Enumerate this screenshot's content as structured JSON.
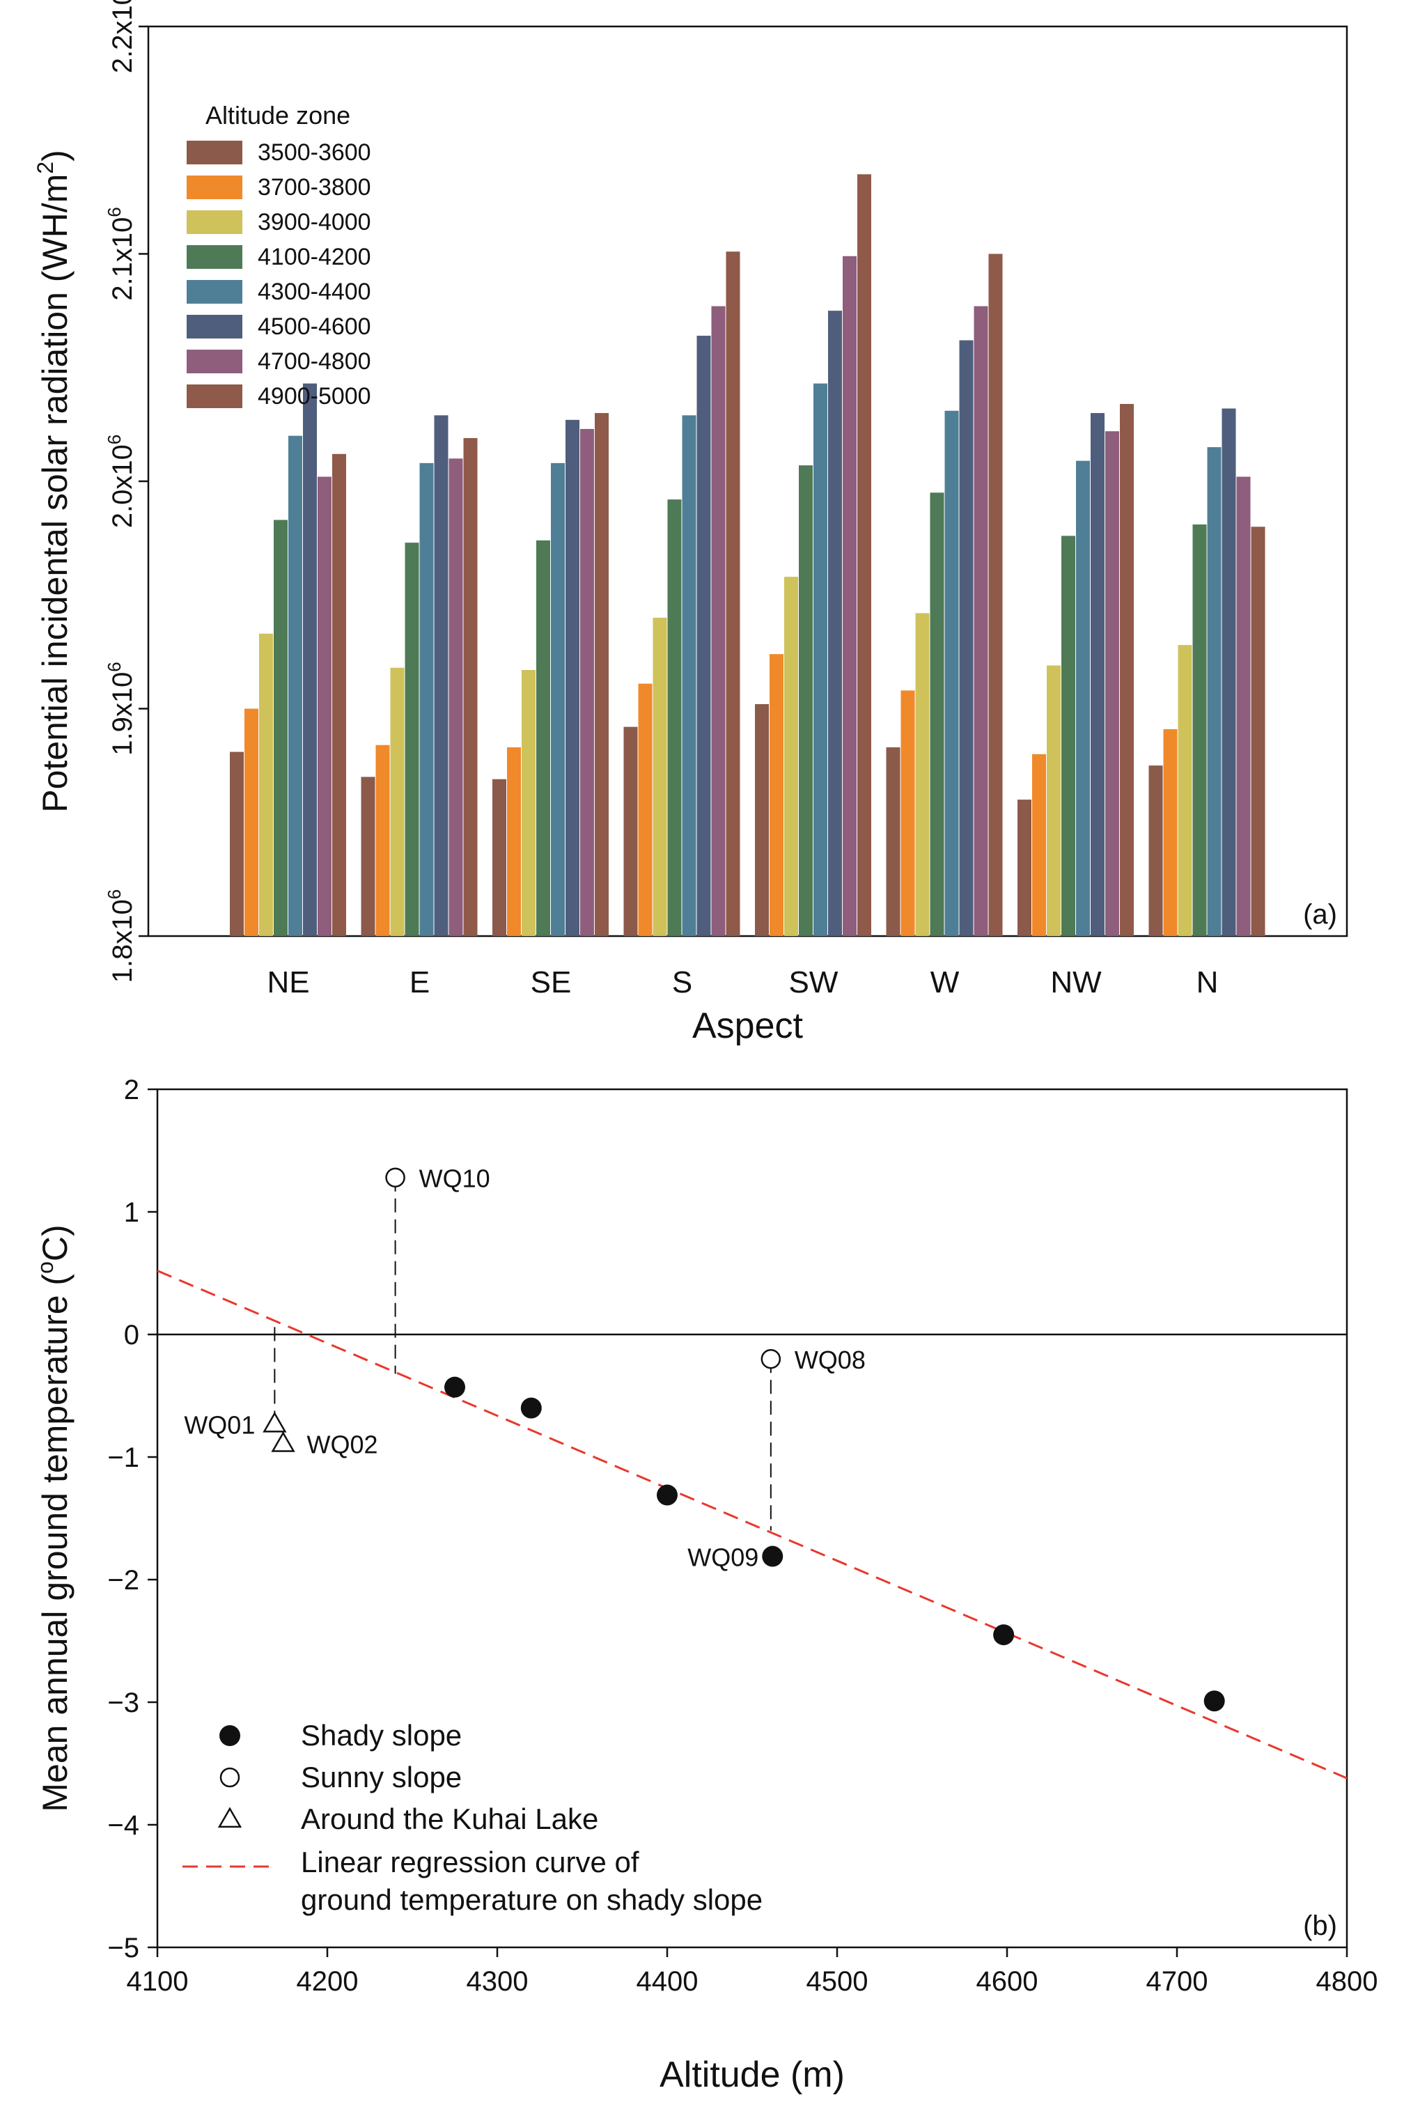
{
  "figure": {
    "chart_data": [
      {
        "type": "bar",
        "panel_label": "(a)",
        "title": "",
        "xlabel": "Aspect",
        "ylabel": "Potential incidental solar radiation (WH/m²)",
        "ylabel_base": "Potential incidental solar radiation (WH/m",
        "ylabel_sup": "2",
        "ylabel_end": ")",
        "ylim": [
          1800000,
          2200000
        ],
        "yticks": [
          1800000,
          1900000,
          2000000,
          2100000,
          2200000
        ],
        "ytick_mantissas": [
          "1.8x10",
          "1.9x10",
          "2.0x10",
          "2.1x10",
          "2.2x10"
        ],
        "ytick_exponent": "6",
        "legend_title": "Altitude zone",
        "legend_position": "top-left",
        "categories": [
          "NE",
          "E",
          "SE",
          "S",
          "SW",
          "W",
          "NW",
          "N"
        ],
        "series": [
          {
            "name": "3500-3600",
            "color": "#8B5A4A",
            "values": [
              1881000,
              1870000,
              1869000,
              1892000,
              1902000,
              1883000,
              1860000,
              1875000
            ]
          },
          {
            "name": "3700-3800",
            "color": "#F0892A",
            "values": [
              1900000,
              1884000,
              1883000,
              1911000,
              1924000,
              1908000,
              1880000,
              1891000
            ]
          },
          {
            "name": "3900-4000",
            "color": "#CFC25A",
            "values": [
              1933000,
              1918000,
              1917000,
              1940000,
              1958000,
              1942000,
              1919000,
              1928000
            ]
          },
          {
            "name": "4100-4200",
            "color": "#4E7A56",
            "values": [
              1983000,
              1973000,
              1974000,
              1992000,
              2007000,
              1995000,
              1976000,
              1981000
            ]
          },
          {
            "name": "4300-4400",
            "color": "#4F7F96",
            "values": [
              2020000,
              2008000,
              2008000,
              2029000,
              2043000,
              2031000,
              2009000,
              2015000
            ]
          },
          {
            "name": "4500-4600",
            "color": "#4F5E7C",
            "values": [
              2043000,
              2029000,
              2027000,
              2064000,
              2075000,
              2062000,
              2030000,
              2032000
            ]
          },
          {
            "name": "4700-4800",
            "color": "#8E5E7C",
            "values": [
              2002000,
              2010000,
              2023000,
              2077000,
              2099000,
              2077000,
              2022000,
              2002000
            ]
          },
          {
            "name": "4900-5000",
            "color": "#8F5A49",
            "values": [
              2012000,
              2019000,
              2030000,
              2101000,
              2135000,
              2100000,
              2034000,
              1980000
            ]
          }
        ]
      },
      {
        "type": "scatter",
        "panel_label": "(b)",
        "title": "",
        "xlabel": "Altitude (m)",
        "ylabel": "Mean annual ground temperature (°C)",
        "ylabel_base": "Mean annual ground temperature (",
        "ylabel_sup": "o",
        "ylabel_end": "C)",
        "xlim": [
          4100,
          4800
        ],
        "ylim": [
          -5,
          2
        ],
        "xticks": [
          4100,
          4200,
          4300,
          4400,
          4500,
          4600,
          4700,
          4800
        ],
        "xtick_labels": [
          "4100",
          "4200",
          "4300",
          "4400",
          "4500",
          "4600",
          "4700",
          "4800"
        ],
        "yticks": [
          2,
          1,
          0,
          -1,
          -2,
          -3,
          -4,
          -5
        ],
        "ytick_labels": [
          "2",
          "1",
          "0",
          "−1",
          "−2",
          "−3",
          "−4",
          "−5"
        ],
        "zero_line": true,
        "series": [
          {
            "name": "Shady slope",
            "marker": "filled-circle",
            "points": [
              {
                "x": 4275,
                "y": -0.43,
                "label": ""
              },
              {
                "x": 4320,
                "y": -0.6,
                "label": ""
              },
              {
                "x": 4400,
                "y": -1.31,
                "label": ""
              },
              {
                "x": 4462,
                "y": -1.81,
                "label": "WQ09"
              },
              {
                "x": 4598,
                "y": -2.45,
                "label": ""
              },
              {
                "x": 4722,
                "y": -2.99,
                "label": ""
              }
            ]
          },
          {
            "name": "Sunny slope",
            "marker": "open-circle",
            "points": [
              {
                "x": 4240,
                "y": 1.28,
                "label": "WQ10"
              },
              {
                "x": 4461,
                "y": -0.2,
                "label": "WQ08"
              }
            ]
          },
          {
            "name": "Around the Kuhai Lake",
            "marker": "open-triangle",
            "points": [
              {
                "x": 4169,
                "y": -0.73,
                "label": "WQ01"
              },
              {
                "x": 4174,
                "y": -0.89,
                "label": "WQ02"
              }
            ]
          }
        ],
        "regression": {
          "name": "Linear regression curve of ground temperature on shady slope",
          "name_line1": "Linear regression curve of",
          "name_line2": "ground temperature on shady slope",
          "color": "#E8382E",
          "x": [
            4100,
            4800
          ],
          "y": [
            0.52,
            -3.62
          ]
        },
        "dashed_connectors": [
          {
            "x": 4240,
            "y_from": 1.28,
            "y_to": -0.32
          },
          {
            "x": 4461,
            "y_from": -0.2,
            "y_to": -1.6
          },
          {
            "x": 4169,
            "y_from": 0.06,
            "y_to": -0.73
          }
        ]
      }
    ]
  }
}
